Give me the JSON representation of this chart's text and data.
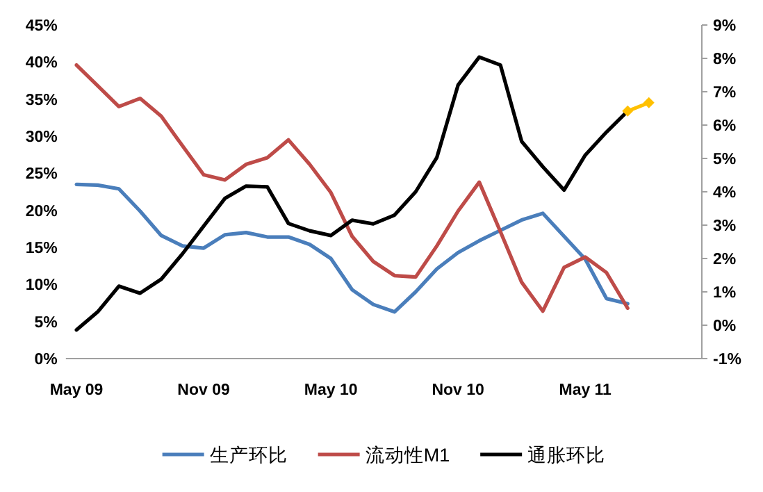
{
  "chart_data": {
    "type": "line",
    "categories": [
      "May 09",
      null,
      null,
      null,
      null,
      null,
      "Nov 09",
      null,
      null,
      null,
      null,
      null,
      "May 10",
      null,
      null,
      null,
      null,
      null,
      "Nov 10",
      null,
      null,
      null,
      null,
      null,
      "May 11",
      null,
      null,
      null,
      null,
      null
    ],
    "series": [
      {
        "name": "生产环比",
        "color": "#4a7ebb",
        "values": [
          23.5,
          23.4,
          22.9,
          19.9,
          16.6,
          15.2,
          14.9,
          16.7,
          17.0,
          16.4,
          16.4,
          15.4,
          13.5,
          9.3,
          7.3,
          6.3,
          9.0,
          12.1,
          14.3,
          15.9,
          17.3,
          18.7,
          19.6,
          16.5,
          13.4,
          8.1,
          7.4,
          null,
          null,
          null
        ]
      },
      {
        "name": "流动性M1",
        "color": "#be4b48",
        "values": [
          39.6,
          36.8,
          34.0,
          35.1,
          32.7,
          28.7,
          24.8,
          24.1,
          26.2,
          27.1,
          29.5,
          26.2,
          22.4,
          16.5,
          13.1,
          11.2,
          11.0,
          15.2,
          19.9,
          23.8,
          17.1,
          10.3,
          6.4,
          12.3,
          13.7,
          11.6,
          6.8,
          null,
          null,
          null
        ]
      },
      {
        "name": "通胀环比",
        "color": "#000000",
        "axis": "y2",
        "values": [
          -0.14,
          0.4,
          1.17,
          0.96,
          1.38,
          2.14,
          2.97,
          3.8,
          4.17,
          4.15,
          3.05,
          2.83,
          2.69,
          3.15,
          3.04,
          3.3,
          4.0,
          5.03,
          7.2,
          8.04,
          7.8,
          5.51,
          4.75,
          4.05,
          5.1,
          5.79,
          6.42,
          null,
          null,
          null
        ]
      },
      {
        "color": "#ffc000",
        "axis": "y2",
        "marker": "diamond",
        "values": [
          null,
          null,
          null,
          null,
          null,
          null,
          null,
          null,
          null,
          null,
          null,
          null,
          null,
          null,
          null,
          null,
          null,
          null,
          null,
          null,
          null,
          null,
          null,
          null,
          null,
          null,
          6.42,
          6.67,
          null,
          null
        ]
      }
    ],
    "ylim": [
      0,
      45
    ],
    "yticks": [
      {
        "value": 0,
        "label": "0%"
      },
      {
        "value": 5,
        "label": "5%"
      },
      {
        "value": 10,
        "label": "10%"
      },
      {
        "value": 15,
        "label": "15%"
      },
      {
        "value": 20,
        "label": "20%"
      },
      {
        "value": 25,
        "label": "25%"
      },
      {
        "value": 30,
        "label": "30%"
      },
      {
        "value": 35,
        "label": "35%"
      },
      {
        "value": 40,
        "label": "40%"
      },
      {
        "value": 45,
        "label": "45%"
      }
    ],
    "y2lim": [
      -1,
      9
    ],
    "y2ticks": [
      {
        "value": -1,
        "label": "-1%"
      },
      {
        "value": 0,
        "label": "0%"
      },
      {
        "value": 1,
        "label": "1%"
      },
      {
        "value": 2,
        "label": "2%"
      },
      {
        "value": 3,
        "label": "3%"
      },
      {
        "value": 4,
        "label": "4%"
      },
      {
        "value": 5,
        "label": "5%"
      },
      {
        "value": 6,
        "label": "6%"
      },
      {
        "value": 7,
        "label": "7%"
      },
      {
        "value": 8,
        "label": "8%"
      },
      {
        "value": 9,
        "label": "9%"
      }
    ],
    "legend": "bottom",
    "grid": false
  }
}
